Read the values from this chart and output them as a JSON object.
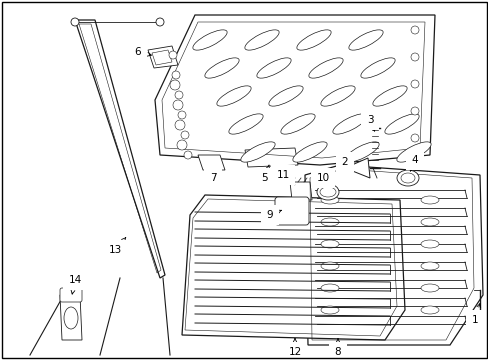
{
  "background_color": "#ffffff",
  "border_color": "#000000",
  "figure_width": 4.89,
  "figure_height": 3.6,
  "dpi": 100,
  "line_color": "#1a1a1a",
  "label_fontsize": 7.5
}
